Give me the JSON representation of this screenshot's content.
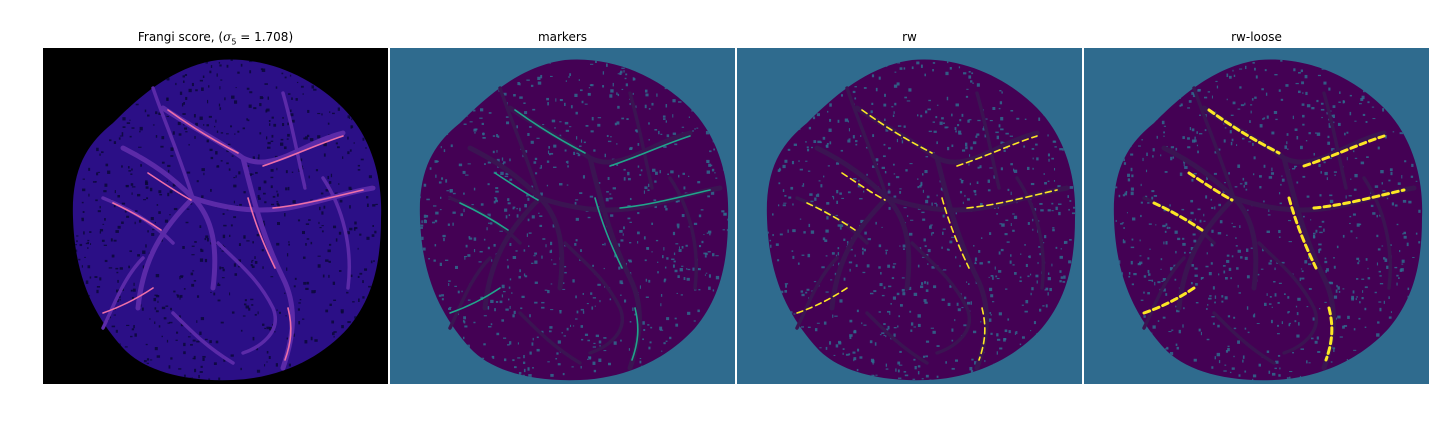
{
  "figure": {
    "panels": [
      {
        "id": "frangi",
        "title_prefix": "Frangi score, (",
        "title_sigma_symbol": "σ",
        "title_sigma_sub": "5",
        "title_suffix": " = 1.708)",
        "background": "#000000",
        "fill": "#2b0f86",
        "texture": "#0a0838",
        "vessel": "#5b2aa8",
        "vessel_highlight": "#ef6fa8"
      },
      {
        "id": "markers",
        "title": "markers",
        "background": "#2f6b8e",
        "fill": "#440154",
        "texture": "#2f6b8e",
        "vessel": "#3b1452",
        "vessel_highlight": "#21a58c"
      },
      {
        "id": "rw",
        "title": "rw",
        "background": "#2f6b8e",
        "fill": "#440154",
        "texture": "#2f6b8e",
        "vessel": "#3b1452",
        "vessel_highlight": "#fde725"
      },
      {
        "id": "rw-loose",
        "title": "rw-loose",
        "background": "#2f6b8e",
        "fill": "#440154",
        "texture": "#2f6b8e",
        "vessel": "#3b1452",
        "vessel_highlight": "#fde725"
      }
    ]
  }
}
